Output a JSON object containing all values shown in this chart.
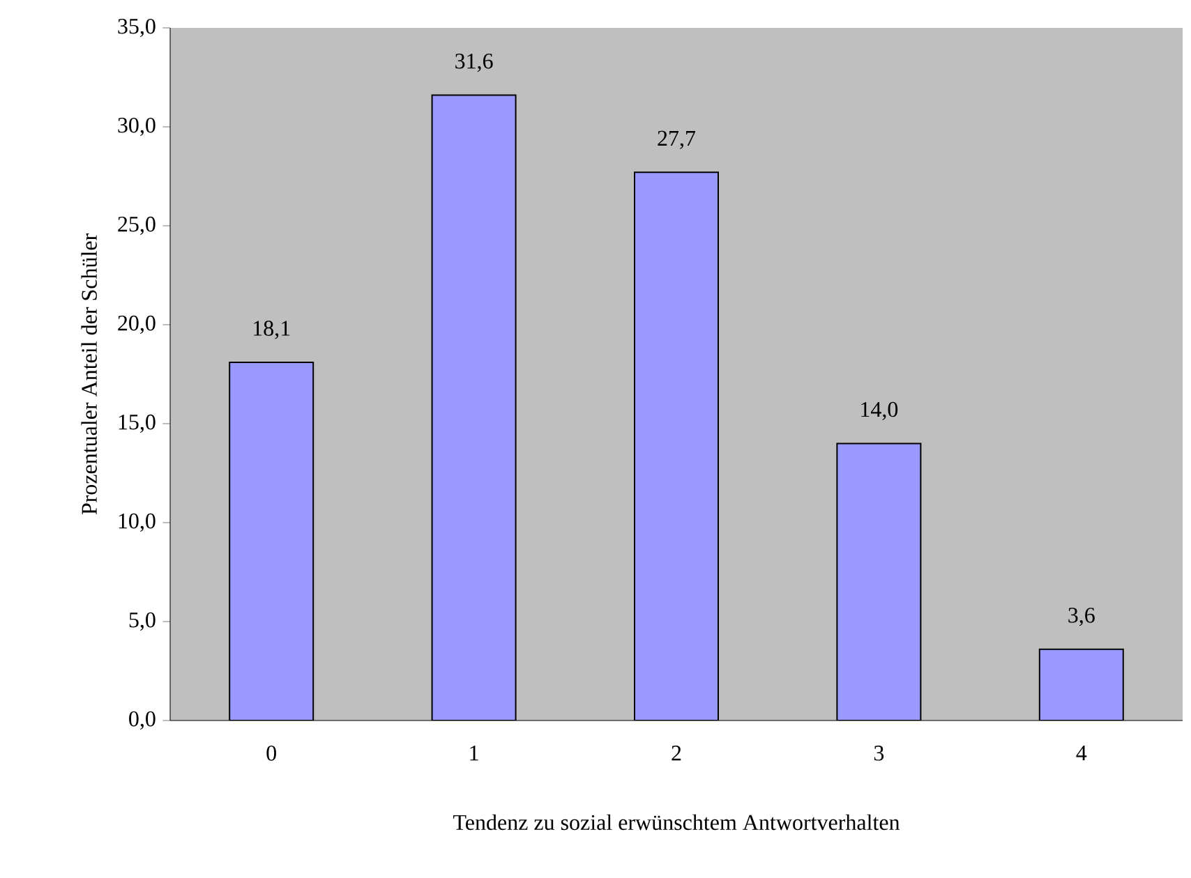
{
  "chart_data": {
    "type": "bar",
    "xlabel": "Tendenz zu sozial erwünschtem Antwortverhalten",
    "ylabel": "Prozentualer Anteil der Schüler",
    "categories": [
      "0",
      "1",
      "2",
      "3",
      "4"
    ],
    "values": [
      18.1,
      31.6,
      27.7,
      14.0,
      3.6
    ],
    "value_labels": [
      "18,1",
      "31,6",
      "27,7",
      "14,0",
      "3,6"
    ],
    "color": "#9999ff",
    "ylim": [
      0,
      35
    ],
    "yticks": [
      {
        "value": 0,
        "label": "0,0"
      },
      {
        "value": 5,
        "label": "5,0"
      },
      {
        "value": 10,
        "label": "10,0"
      },
      {
        "value": 15,
        "label": "15,0"
      },
      {
        "value": 20,
        "label": "20,0"
      },
      {
        "value": 25,
        "label": "25,0"
      },
      {
        "value": 30,
        "label": "30,0"
      },
      {
        "value": 35,
        "label": "35,0"
      }
    ],
    "grid": false
  }
}
